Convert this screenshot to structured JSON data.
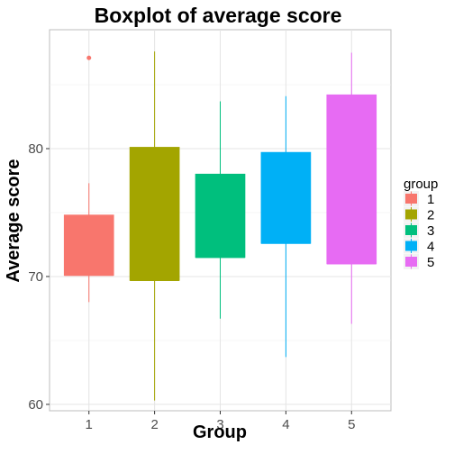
{
  "chart_data": {
    "type": "boxplot",
    "title": "Boxplot of average score",
    "xlabel": "Group",
    "ylabel": "Average score",
    "categories": [
      "1",
      "2",
      "3",
      "4",
      "5"
    ],
    "ylim": [
      59.5,
      89.3
    ],
    "y_ticks": [
      60,
      70,
      80
    ],
    "y_tick_labels": [
      "60",
      "70",
      "80"
    ],
    "grid": true,
    "legend": {
      "title": "group",
      "position": "right",
      "entries": [
        "1",
        "2",
        "3",
        "4",
        "5"
      ]
    },
    "series": [
      {
        "name": "1",
        "color": "#F8766D",
        "min": 68.0,
        "q1": 70.1,
        "median": 70.1,
        "q3": 74.8,
        "max": 77.3,
        "outliers": [
          87.1
        ]
      },
      {
        "name": "2",
        "color": "#A3A500",
        "min": 60.3,
        "q1": 69.7,
        "median": 69.7,
        "q3": 80.1,
        "max": 87.6,
        "outliers": []
      },
      {
        "name": "3",
        "color": "#00BF7D",
        "min": 66.7,
        "q1": 71.5,
        "median": 71.5,
        "q3": 78.0,
        "max": 83.7,
        "outliers": []
      },
      {
        "name": "4",
        "color": "#00B0F6",
        "min": 63.7,
        "q1": 72.6,
        "median": 72.6,
        "q3": 79.7,
        "max": 84.1,
        "outliers": []
      },
      {
        "name": "5",
        "color": "#E76BF3",
        "min": 66.3,
        "q1": 71.0,
        "median": 71.0,
        "q3": 84.2,
        "max": 87.5,
        "outliers": []
      }
    ]
  }
}
